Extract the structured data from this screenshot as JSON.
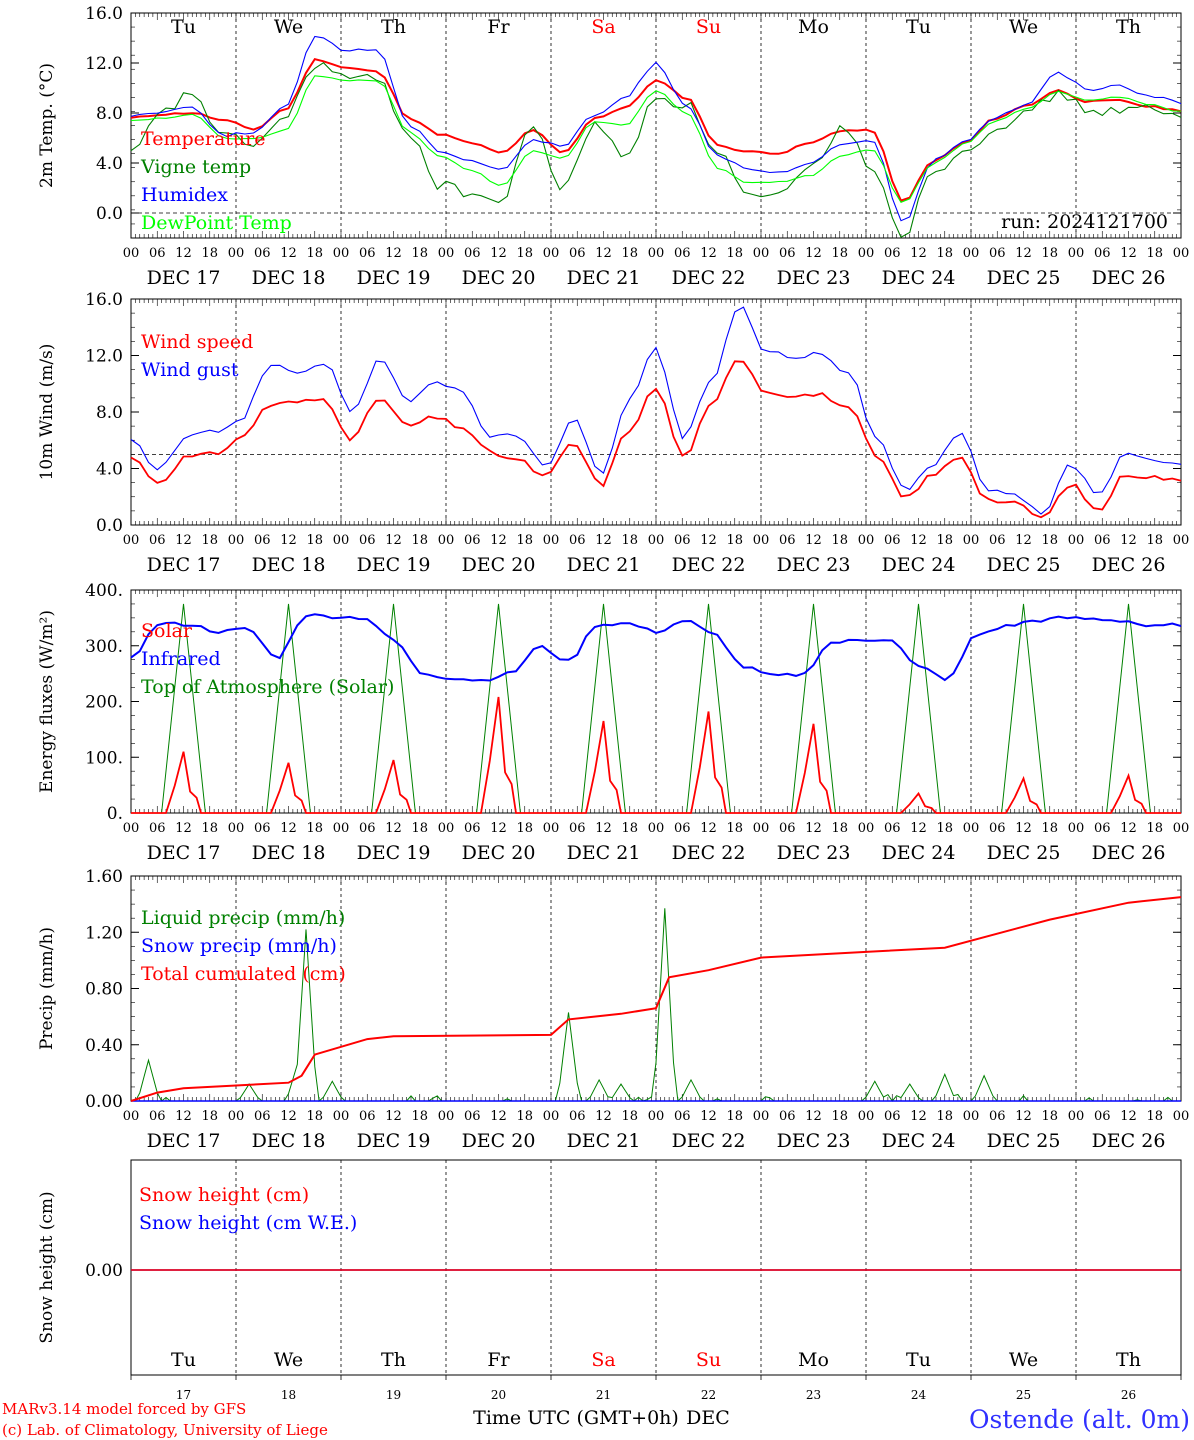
{
  "figure": {
    "run_label": "run: 2024121700",
    "model_credit": "MARv3.14 model forced by GFS",
    "lab_credit": "(c) Lab. of Climatology, University of Liege",
    "time_axis_label": "Time UTC (GMT+0h)",
    "month_label": "DEC",
    "station": "Ostende (alt. 0m)",
    "hour_ticks": [
      "00",
      "06",
      "12",
      "18"
    ],
    "date_labels": [
      "DEC 17",
      "DEC 18",
      "DEC 19",
      "DEC 20",
      "DEC 21",
      "DEC 22",
      "DEC 23",
      "DEC 24",
      "DEC 25",
      "DEC 26"
    ],
    "day_numbers": [
      "17",
      "18",
      "19",
      "20",
      "21",
      "22",
      "23",
      "24",
      "25",
      "26"
    ],
    "weekdays": [
      "Tu",
      "We",
      "Th",
      "Fr",
      "Sa",
      "Su",
      "Mo",
      "Tu",
      "We",
      "Th"
    ],
    "weekday_colors": [
      "#000000",
      "#000000",
      "#000000",
      "#000000",
      "#ff0000",
      "#ff0000",
      "#000000",
      "#000000",
      "#000000",
      "#000000"
    ]
  },
  "chart_data": [
    {
      "type": "line",
      "id": "temp",
      "ylabel": "2m Temp. (°C)",
      "ylim": [
        -2,
        16
      ],
      "yticks": [
        "16.0",
        "12.0",
        "8.0",
        "4.0",
        "0.0"
      ],
      "ref_line": 0,
      "xlabel_days": [
        "DEC 17",
        "DEC 18",
        "DEC 19",
        "DEC 20",
        "DEC 21",
        "DEC 22",
        "DEC 23",
        "DEC 24",
        "DEC 25",
        "DEC 26"
      ],
      "x_hours": [
        0,
        6,
        12,
        18,
        24,
        30,
        36,
        42,
        48,
        54,
        60,
        66,
        72,
        78,
        84,
        90,
        96,
        102,
        108,
        114,
        120,
        126,
        132,
        138,
        144,
        150,
        156,
        162,
        168,
        174,
        180,
        186,
        192,
        198,
        204,
        210,
        216,
        222,
        228,
        234,
        240
      ],
      "series": [
        {
          "name": "Temperature",
          "color": "#ff0000",
          "values": [
            7.6,
            7.9,
            8.0,
            7.4,
            6.7,
            8.3,
            12.3,
            11.6,
            11.3,
            7.6,
            6.3,
            5.6,
            4.8,
            6.6,
            4.8,
            7.6,
            8.4,
            10.6,
            9.2,
            5.4,
            4.9,
            4.8,
            5.6,
            6.6,
            6.6,
            0.9,
            4.2,
            5.6,
            7.6,
            8.6,
            9.8,
            8.9,
            9.0,
            8.5,
            8.2
          ]
        },
        {
          "name": "Vigne temp",
          "color": "#008000",
          "values": [
            4.6,
            8.0,
            9.6,
            6.0,
            5.6,
            7.6,
            12.0,
            10.8,
            10.6,
            6.4,
            2.2,
            1.6,
            0.8,
            7.1,
            1.8,
            7.3,
            4.3,
            9.4,
            8.6,
            5.0,
            1.2,
            1.2,
            3.6,
            6.8,
            3.8,
            -1.8,
            3.5,
            5.0,
            7.0,
            7.8,
            9.6,
            8.2,
            8.2,
            8.3,
            7.5
          ]
        },
        {
          "name": "Humidex",
          "color": "#0000ff",
          "values": [
            7.8,
            8.1,
            8.5,
            6.2,
            6.5,
            8.5,
            14.2,
            13.0,
            13.1,
            7.0,
            5.0,
            4.2,
            3.5,
            5.8,
            5.4,
            7.8,
            9.2,
            12.0,
            8.6,
            4.6,
            3.4,
            3.2,
            3.9,
            5.5,
            5.9,
            -0.8,
            4.2,
            5.8,
            7.7,
            8.7,
            11.2,
            9.9,
            10.2,
            9.4,
            8.8
          ]
        },
        {
          "name": "DewPoint Temp",
          "color": "#00ff00",
          "values": [
            7.4,
            7.6,
            7.9,
            6.0,
            5.9,
            6.6,
            11.0,
            10.6,
            10.6,
            6.5,
            4.6,
            3.4,
            2.2,
            5.0,
            4.4,
            7.3,
            7.0,
            9.8,
            8.0,
            3.6,
            2.4,
            2.5,
            3.0,
            4.6,
            5.1,
            0.8,
            4.0,
            5.5,
            7.4,
            8.3,
            9.7,
            9.0,
            9.3,
            8.7,
            8.1
          ]
        }
      ]
    },
    {
      "type": "line",
      "id": "wind",
      "ylabel": "10m Wind (m/s)",
      "ylim": [
        0,
        16
      ],
      "yticks": [
        "16.0",
        "12.0",
        "8.0",
        "4.0",
        "0.0"
      ],
      "ref_line": 5,
      "series": [
        {
          "name": "Wind speed",
          "color": "#ff0000",
          "values": [
            4.8,
            3.0,
            4.8,
            5.0,
            6.2,
            8.5,
            8.7,
            8.9,
            6.1,
            9.0,
            7.0,
            7.6,
            6.9,
            5.1,
            4.6,
            3.4,
            5.8,
            2.8,
            6.7,
            9.7,
            4.8,
            8.4,
            11.9,
            9.4,
            9.2,
            9.2,
            8.2,
            4.8,
            1.9,
            3.5,
            4.9,
            1.8,
            1.5,
            0.5,
            2.9,
            1.0,
            3.6,
            3.4,
            3.1
          ]
        },
        {
          "name": "Wind gust",
          "color": "#0000ff",
          "values": [
            6.0,
            3.9,
            6.2,
            6.6,
            7.5,
            11.3,
            10.8,
            11.5,
            8.0,
            11.8,
            8.8,
            10.0,
            9.5,
            6.2,
            6.4,
            4.1,
            7.5,
            3.6,
            8.8,
            12.4,
            6.2,
            10.1,
            15.5,
            12.3,
            11.8,
            12.1,
            10.7,
            6.1,
            2.5,
            4.1,
            6.5,
            2.4,
            2.1,
            0.7,
            4.3,
            2.2,
            5.0,
            4.5,
            4.3
          ]
        }
      ]
    },
    {
      "type": "line",
      "id": "flux",
      "ylabel": "Energy fluxes (W/m²)",
      "ylim": [
        0,
        400
      ],
      "yticks": [
        "400.",
        "300.",
        "200.",
        "100.",
        "0."
      ],
      "series": [
        {
          "name": "Solar",
          "color": "#ff0000",
          "peaks": [
            110,
            90,
            95,
            208,
            165,
            182,
            160,
            35,
            62,
            67
          ]
        },
        {
          "name": "Infrared",
          "color": "#0000ff",
          "values": [
            280,
            340,
            338,
            325,
            330,
            278,
            355,
            352,
            350,
            310,
            250,
            242,
            238,
            250,
            298,
            272,
            338,
            340,
            325,
            345,
            320,
            262,
            246,
            248,
            305,
            310,
            312,
            262,
            240,
            320,
            335,
            345,
            350,
            348,
            345,
            334,
            338
          ]
        },
        {
          "name": "Top of Atmosphere (Solar)",
          "color": "#008000",
          "peak": 375
        }
      ]
    },
    {
      "type": "line",
      "id": "precip",
      "ylabel": "Precip (mm/h)",
      "ylim": [
        0,
        1.6
      ],
      "yticks": [
        "1.60",
        "1.20",
        "0.80",
        "0.40",
        "0.00"
      ],
      "series": [
        {
          "name": "Liquid precip (mm/h)",
          "color": "#008000",
          "spikes": [
            [
              4,
              0.29
            ],
            [
              27,
              0.12
            ],
            [
              38,
              0.26
            ],
            [
              40,
              1.22
            ],
            [
              46,
              0.14
            ],
            [
              100,
              0.63
            ],
            [
              107,
              0.15
            ],
            [
              112,
              0.12
            ],
            [
              120,
              0.05
            ],
            [
              122,
              1.37
            ],
            [
              128,
              0.15
            ],
            [
              170,
              0.14
            ],
            [
              178,
              0.12
            ],
            [
              186,
              0.19
            ],
            [
              195,
              0.18
            ]
          ]
        },
        {
          "name": "Snow precip (mm/h)",
          "color": "#0000ff",
          "values": [
            0
          ]
        },
        {
          "name": "Total cumulated (cm)",
          "color": "#ff0000",
          "points": [
            [
              0,
              0.0
            ],
            [
              6,
              0.06
            ],
            [
              12,
              0.09
            ],
            [
              24,
              0.11
            ],
            [
              36,
              0.13
            ],
            [
              39,
              0.18
            ],
            [
              42,
              0.33
            ],
            [
              54,
              0.44
            ],
            [
              60,
              0.46
            ],
            [
              96,
              0.47
            ],
            [
              100,
              0.58
            ],
            [
              112,
              0.62
            ],
            [
              120,
              0.66
            ],
            [
              123,
              0.88
            ],
            [
              132,
              0.93
            ],
            [
              144,
              1.02
            ],
            [
              168,
              1.06
            ],
            [
              186,
              1.09
            ],
            [
              210,
              1.29
            ],
            [
              228,
              1.41
            ],
            [
              240,
              1.45
            ]
          ]
        }
      ]
    },
    {
      "type": "line",
      "id": "snow",
      "ylabel": "Snow height (cm)",
      "yticks": [
        "0.00"
      ],
      "series": [
        {
          "name": "Snow height (cm)",
          "color": "#ff0000",
          "values": [
            0.0
          ]
        },
        {
          "name": "Snow height (cm W.E.)",
          "color": "#0000ff",
          "values": [
            0.0
          ]
        }
      ]
    }
  ]
}
